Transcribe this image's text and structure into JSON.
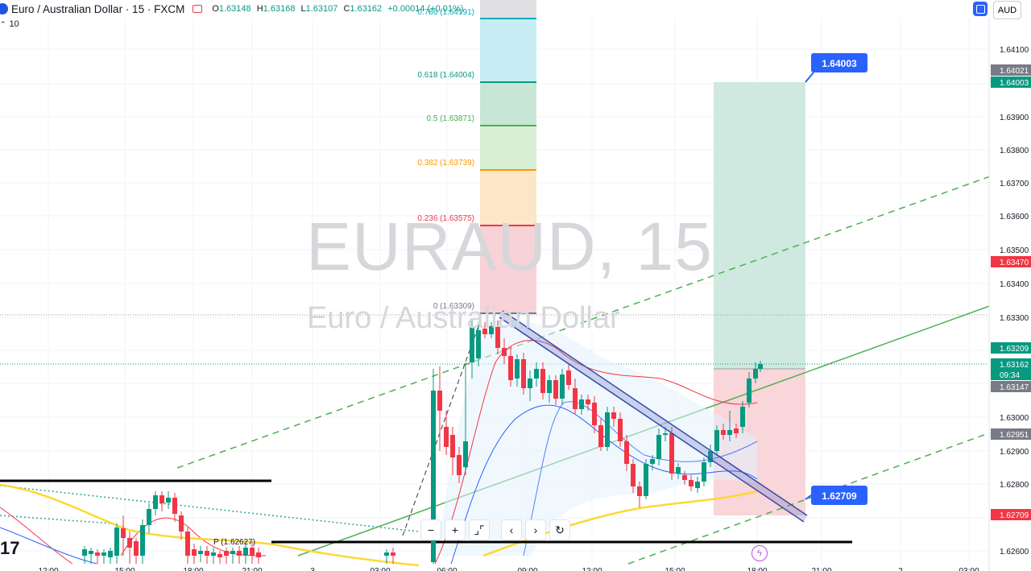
{
  "header": {
    "symbol_title": "Euro / Australian Dollar · 15 · FXCM",
    "open_label": "O",
    "open": "1.63148",
    "high_label": "H",
    "high": "1.63168",
    "low_label": "L",
    "low": "1.63107",
    "close_label": "C",
    "close": "1.63162",
    "change": "+0.00014 (+0.01%)",
    "volume_value": "10"
  },
  "toolbar": {
    "currency": "AUD",
    "settings_icon": "chart-settings-icon"
  },
  "watermark": {
    "symbol": "EURAUD, 15",
    "description": "Euro / Australian Dollar"
  },
  "price_scale": {
    "labels": [
      "1.64100",
      "1.63900",
      "1.63800",
      "1.63700",
      "1.63600",
      "1.63500",
      "1.63400",
      "1.63300",
      "1.63000",
      "1.62900",
      "1.62800",
      "1.62600"
    ],
    "badges": [
      {
        "text": "1.64021",
        "color": "#787b86"
      },
      {
        "text": "1.64003",
        "color": "#089981"
      },
      {
        "text": "1.63470",
        "color": "#f23645"
      },
      {
        "text": "1.63209",
        "color": "#089981"
      },
      {
        "text": "1.63162",
        "color": "#089981"
      },
      {
        "text": "09:34",
        "color": "#089981"
      },
      {
        "text": "1.63147",
        "color": "#787b86"
      },
      {
        "text": "1.62951",
        "color": "#787b86"
      },
      {
        "text": "1.62709",
        "color": "#f23645"
      }
    ]
  },
  "time_scale": {
    "labels": [
      "12:00",
      "15:00",
      "18:00",
      "21:00",
      "3",
      "03:00",
      "06:00",
      "09:00",
      "12:00",
      "15:00",
      "18:00",
      "21:00",
      "2",
      "03:00"
    ]
  },
  "fib_levels": [
    {
      "label": "0.618 (1.64004)",
      "color": "#089981"
    },
    {
      "label": "0.5 (1.63871)",
      "color": "#4caf50"
    },
    {
      "label": "0.382 (1.63739)",
      "color": "#ff9800"
    },
    {
      "label": "0.236 (1.63575)",
      "color": "#f23645"
    },
    {
      "label": "0 (1.63309)",
      "color": "#787b86"
    }
  ],
  "fib_partial_label": "0.786 (1.64191)",
  "position_tool": {
    "target_label": "1.64003",
    "stop_label": "1.62709"
  },
  "pivot_label": "P (1.62627)",
  "zoom_controls": {
    "minus": "−",
    "plus": "+",
    "reset_icon": "reset-icon"
  },
  "colors": {
    "up": "#089981",
    "down": "#f23645",
    "accent": "#2962ff",
    "fib_green": "#089981"
  }
}
